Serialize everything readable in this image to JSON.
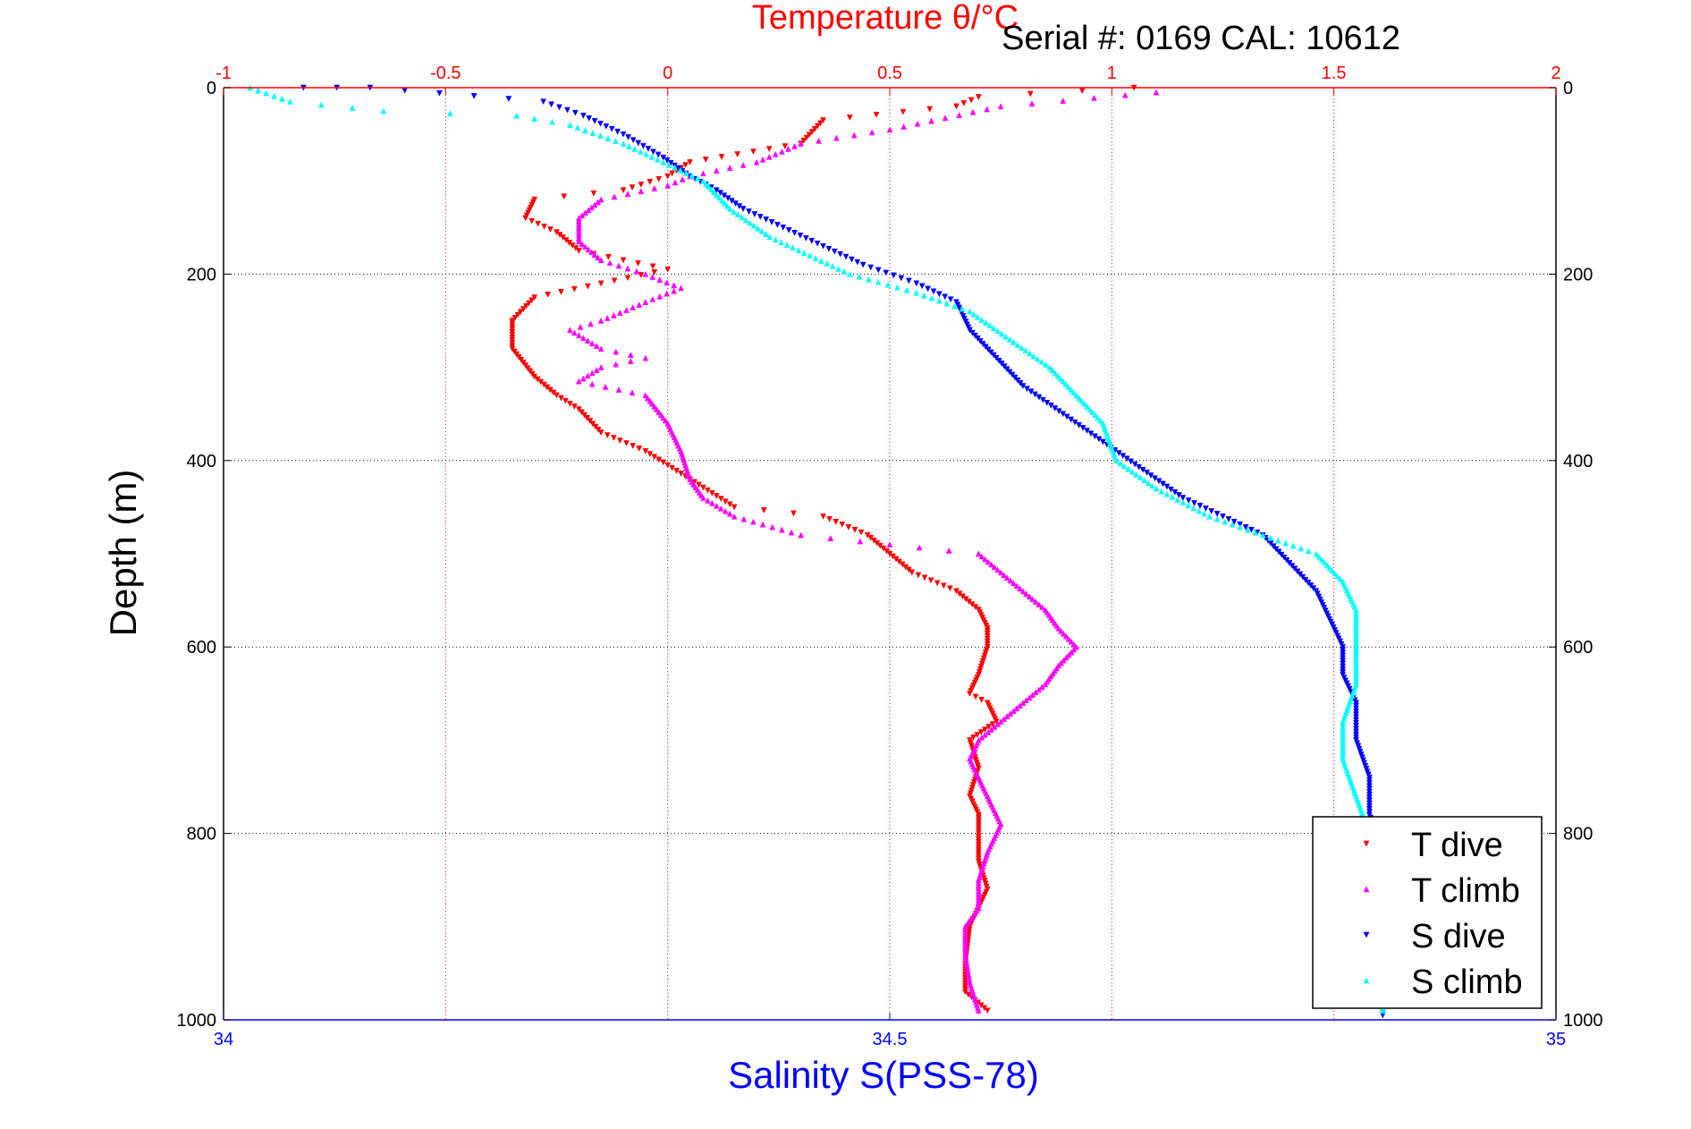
{
  "chart_data": {
    "type": "scatter",
    "title": "Temperature θ/°C",
    "annotation": "Serial #: 0169 CAL: 10612",
    "xlabel": "Salinity S(PSS-78)",
    "ylabel": "Depth (m)",
    "top_axis": {
      "label": "Temperature θ/°C",
      "range": [
        -1,
        2
      ],
      "ticks": [
        "-1",
        "-0.5",
        "0",
        "0.5",
        "1",
        "1.5",
        "2"
      ],
      "color": "#ff0000"
    },
    "bottom_axis": {
      "label": "Salinity S(PSS-78)",
      "range": [
        34,
        35
      ],
      "ticks": [
        "34",
        "34.5",
        "35"
      ],
      "color": "#0000ff"
    },
    "y_axis": {
      "label": "Depth (m)",
      "range": [
        0,
        1000
      ],
      "reversed": true,
      "ticks": [
        "0",
        "200",
        "400",
        "600",
        "800",
        "1000"
      ]
    },
    "grid": true,
    "legend_position": "bottom-right",
    "series": [
      {
        "name": "T dive",
        "axis": "temperature",
        "marker": "triangle-down",
        "color": "#ff0000",
        "points": [
          [
            1.05,
            0
          ],
          [
            0.7,
            10
          ],
          [
            0.65,
            20
          ],
          [
            0.35,
            35
          ],
          [
            0.3,
            60
          ],
          [
            0.05,
            80
          ],
          [
            0.0,
            95
          ],
          [
            -0.1,
            110
          ],
          [
            -0.3,
            120
          ],
          [
            -0.32,
            140
          ],
          [
            -0.25,
            155
          ],
          [
            -0.2,
            175
          ],
          [
            -0.1,
            185
          ],
          [
            0.0,
            195
          ],
          [
            -0.15,
            210
          ],
          [
            -0.3,
            225
          ],
          [
            -0.35,
            250
          ],
          [
            -0.35,
            280
          ],
          [
            -0.3,
            310
          ],
          [
            -0.25,
            330
          ],
          [
            -0.2,
            345
          ],
          [
            -0.15,
            370
          ],
          [
            -0.05,
            390
          ],
          [
            0.0,
            405
          ],
          [
            0.05,
            420
          ],
          [
            0.1,
            435
          ],
          [
            0.15,
            450
          ],
          [
            0.35,
            460
          ],
          [
            0.45,
            480
          ],
          [
            0.5,
            500
          ],
          [
            0.55,
            520
          ],
          [
            0.65,
            540
          ],
          [
            0.7,
            560
          ],
          [
            0.72,
            580
          ],
          [
            0.72,
            600
          ],
          [
            0.7,
            630
          ],
          [
            0.68,
            650
          ],
          [
            0.72,
            660
          ],
          [
            0.74,
            680
          ],
          [
            0.68,
            700
          ],
          [
            0.7,
            730
          ],
          [
            0.68,
            760
          ],
          [
            0.7,
            780
          ],
          [
            0.7,
            800
          ],
          [
            0.7,
            830
          ],
          [
            0.72,
            860
          ],
          [
            0.7,
            880
          ],
          [
            0.68,
            900
          ],
          [
            0.67,
            940
          ],
          [
            0.67,
            970
          ],
          [
            0.72,
            990
          ]
        ]
      },
      {
        "name": "T climb",
        "axis": "temperature",
        "marker": "triangle-up",
        "color": "#ff00ff",
        "points": [
          [
            1.1,
            5
          ],
          [
            0.75,
            20
          ],
          [
            0.5,
            45
          ],
          [
            0.3,
            60
          ],
          [
            0.2,
            80
          ],
          [
            0.05,
            95
          ],
          [
            0.0,
            105
          ],
          [
            -0.15,
            120
          ],
          [
            -0.2,
            140
          ],
          [
            -0.2,
            165
          ],
          [
            -0.15,
            185
          ],
          [
            -0.05,
            200
          ],
          [
            0.03,
            215
          ],
          [
            -0.05,
            230
          ],
          [
            -0.15,
            250
          ],
          [
            -0.22,
            260
          ],
          [
            -0.15,
            280
          ],
          [
            -0.05,
            290
          ],
          [
            -0.15,
            300
          ],
          [
            -0.2,
            315
          ],
          [
            -0.05,
            330
          ],
          [
            0.0,
            360
          ],
          [
            0.03,
            390
          ],
          [
            0.05,
            420
          ],
          [
            0.08,
            440
          ],
          [
            0.15,
            460
          ],
          [
            0.3,
            480
          ],
          [
            0.5,
            490
          ],
          [
            0.7,
            500
          ],
          [
            0.75,
            520
          ],
          [
            0.8,
            540
          ],
          [
            0.85,
            560
          ],
          [
            0.88,
            580
          ],
          [
            0.92,
            600
          ],
          [
            0.88,
            620
          ],
          [
            0.85,
            640
          ],
          [
            0.8,
            660
          ],
          [
            0.75,
            680
          ],
          [
            0.7,
            700
          ],
          [
            0.68,
            720
          ],
          [
            0.7,
            740
          ],
          [
            0.72,
            760
          ],
          [
            0.75,
            790
          ],
          [
            0.72,
            820
          ],
          [
            0.7,
            850
          ],
          [
            0.7,
            880
          ],
          [
            0.67,
            900
          ],
          [
            0.67,
            930
          ],
          [
            0.68,
            960
          ],
          [
            0.7,
            990
          ]
        ]
      },
      {
        "name": "S dive",
        "axis": "salinity",
        "marker": "triangle-down",
        "color": "#0000ff",
        "points": [
          [
            34.06,
            0
          ],
          [
            34.11,
            0
          ],
          [
            34.24,
            15
          ],
          [
            34.27,
            30
          ],
          [
            34.3,
            50
          ],
          [
            34.33,
            75
          ],
          [
            34.35,
            95
          ],
          [
            34.37,
            110
          ],
          [
            34.39,
            130
          ],
          [
            34.42,
            150
          ],
          [
            34.45,
            170
          ],
          [
            34.48,
            190
          ],
          [
            34.52,
            210
          ],
          [
            34.55,
            230
          ],
          [
            34.56,
            260
          ],
          [
            34.58,
            290
          ],
          [
            34.6,
            320
          ],
          [
            34.63,
            350
          ],
          [
            34.66,
            380
          ],
          [
            34.69,
            410
          ],
          [
            34.72,
            440
          ],
          [
            34.75,
            460
          ],
          [
            34.78,
            480
          ],
          [
            34.8,
            510
          ],
          [
            34.82,
            540
          ],
          [
            34.83,
            570
          ],
          [
            34.84,
            600
          ],
          [
            34.84,
            630
          ],
          [
            34.85,
            660
          ],
          [
            34.85,
            700
          ],
          [
            34.86,
            740
          ],
          [
            34.86,
            780
          ],
          [
            34.87,
            820
          ],
          [
            34.87,
            860
          ],
          [
            34.87,
            900
          ],
          [
            34.87,
            940
          ],
          [
            34.87,
            980
          ],
          [
            34.87,
            995
          ]
        ]
      },
      {
        "name": "S climb",
        "axis": "salinity",
        "marker": "triangle-up",
        "color": "#00ffff",
        "points": [
          [
            34.02,
            0
          ],
          [
            34.05,
            15
          ],
          [
            34.12,
            25
          ],
          [
            34.22,
            30
          ],
          [
            34.26,
            40
          ],
          [
            34.3,
            60
          ],
          [
            34.33,
            80
          ],
          [
            34.36,
            100
          ],
          [
            34.38,
            130
          ],
          [
            34.41,
            160
          ],
          [
            34.44,
            180
          ],
          [
            34.47,
            200
          ],
          [
            34.52,
            220
          ],
          [
            34.56,
            240
          ],
          [
            34.59,
            270
          ],
          [
            34.62,
            300
          ],
          [
            34.64,
            330
          ],
          [
            34.66,
            360
          ],
          [
            34.67,
            400
          ],
          [
            34.7,
            430
          ],
          [
            34.74,
            460
          ],
          [
            34.78,
            480
          ],
          [
            34.82,
            500
          ],
          [
            34.84,
            530
          ],
          [
            34.85,
            560
          ],
          [
            34.85,
            600
          ],
          [
            34.85,
            640
          ],
          [
            34.84,
            680
          ],
          [
            34.84,
            720
          ],
          [
            34.85,
            760
          ],
          [
            34.86,
            800
          ],
          [
            34.86,
            840
          ],
          [
            34.86,
            880
          ],
          [
            34.86,
            920
          ],
          [
            34.87,
            960
          ],
          [
            34.87,
            990
          ]
        ]
      }
    ]
  }
}
